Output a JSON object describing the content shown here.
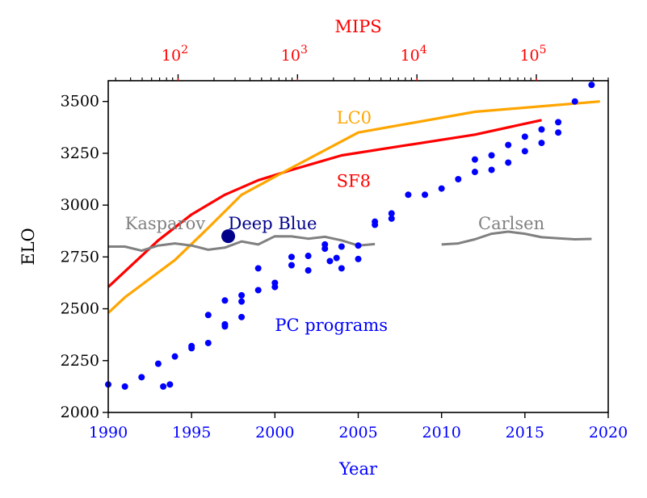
{
  "chart_data": {
    "type": "scatter",
    "xlabel": "Year",
    "ylabel": "ELO",
    "top_xlabel": "MIPS",
    "xlim": [
      1990,
      2020
    ],
    "ylim": [
      2000,
      3600
    ],
    "x_ticks": [
      1990,
      1995,
      2000,
      2005,
      2010,
      2015,
      2020
    ],
    "y_ticks": [
      2000,
      2250,
      2500,
      2750,
      3000,
      3250,
      3500
    ],
    "top_axis": {
      "scale": "log",
      "range_mips": [
        26,
        400000
      ],
      "major_ticks": [
        {
          "value": 100,
          "base": "10",
          "exp": "2"
        },
        {
          "value": 1000,
          "base": "10",
          "exp": "3"
        },
        {
          "value": 10000,
          "base": "10",
          "exp": "4"
        },
        {
          "value": 100000,
          "base": "10",
          "exp": "5"
        }
      ]
    },
    "colors": {
      "bottom_axis": "#0000ff",
      "top_axis": "#ff0000",
      "lc0": "#ffa500",
      "sf8": "#ff0000",
      "human": "#808080",
      "pc": "#0000ff",
      "deep_blue": "#00008b"
    },
    "series": [
      {
        "name": "PC programs",
        "kind": "scatter",
        "points": [
          [
            1990,
            2135
          ],
          [
            1991,
            2125
          ],
          [
            1992,
            2170
          ],
          [
            1993,
            2235
          ],
          [
            1993.3,
            2125
          ],
          [
            1993.7,
            2135
          ],
          [
            1994,
            2270
          ],
          [
            1995,
            2310
          ],
          [
            1995,
            2320
          ],
          [
            1996,
            2335
          ],
          [
            1996,
            2470
          ],
          [
            1997,
            2415
          ],
          [
            1997,
            2425
          ],
          [
            1997,
            2540
          ],
          [
            1998,
            2460
          ],
          [
            1998,
            2535
          ],
          [
            1998,
            2565
          ],
          [
            1999,
            2590
          ],
          [
            1999,
            2695
          ],
          [
            2000,
            2605
          ],
          [
            2000,
            2625
          ],
          [
            2001,
            2710
          ],
          [
            2001,
            2750
          ],
          [
            2002,
            2685
          ],
          [
            2002,
            2755
          ],
          [
            2003,
            2790
          ],
          [
            2003,
            2810
          ],
          [
            2003.3,
            2730
          ],
          [
            2003.7,
            2745
          ],
          [
            2004,
            2695
          ],
          [
            2004,
            2800
          ],
          [
            2005,
            2740
          ],
          [
            2005,
            2805
          ],
          [
            2006,
            2905
          ],
          [
            2006,
            2920
          ],
          [
            2007,
            2935
          ],
          [
            2007,
            2960
          ],
          [
            2008,
            3050
          ],
          [
            2009,
            3050
          ],
          [
            2010,
            3080
          ],
          [
            2011,
            3125
          ],
          [
            2012,
            3160
          ],
          [
            2012,
            3220
          ],
          [
            2013,
            3170
          ],
          [
            2013,
            3240
          ],
          [
            2014,
            3205
          ],
          [
            2014,
            3290
          ],
          [
            2015,
            3260
          ],
          [
            2015,
            3330
          ],
          [
            2016,
            3300
          ],
          [
            2016,
            3365
          ],
          [
            2017,
            3350
          ],
          [
            2017,
            3400
          ],
          [
            2018,
            3500
          ],
          [
            2019,
            3580
          ]
        ]
      },
      {
        "name": "SF8",
        "kind": "line",
        "points": [
          [
            1990,
            2605
          ],
          [
            1991,
            2680
          ],
          [
            1993,
            2830
          ],
          [
            1995,
            2955
          ],
          [
            1997,
            3050
          ],
          [
            1999,
            3120
          ],
          [
            2001,
            3170
          ],
          [
            2004,
            3240
          ],
          [
            2008,
            3290
          ],
          [
            2012,
            3340
          ],
          [
            2016,
            3410
          ]
        ]
      },
      {
        "name": "LC0",
        "kind": "line",
        "points": [
          [
            1990,
            2480
          ],
          [
            1991,
            2555
          ],
          [
            1994,
            2735
          ],
          [
            1996,
            2890
          ],
          [
            1998,
            3050
          ],
          [
            2001,
            3180
          ],
          [
            2005,
            3350
          ],
          [
            2012,
            3450
          ],
          [
            2019.5,
            3500
          ]
        ]
      },
      {
        "name": "Kasparov",
        "kind": "line",
        "points": [
          [
            1990,
            2800
          ],
          [
            1991,
            2800
          ],
          [
            1992,
            2780
          ],
          [
            1993,
            2805
          ],
          [
            1994,
            2815
          ],
          [
            1995,
            2805
          ],
          [
            1996,
            2785
          ],
          [
            1997,
            2795
          ],
          [
            1998,
            2825
          ],
          [
            1999,
            2810
          ],
          [
            2000,
            2850
          ],
          [
            2001,
            2849
          ],
          [
            2002,
            2838
          ],
          [
            2003,
            2847
          ],
          [
            2004,
            2830
          ],
          [
            2005,
            2805
          ],
          [
            2006,
            2812
          ]
        ]
      },
      {
        "name": "Carlsen",
        "kind": "line",
        "points": [
          [
            2010,
            2810
          ],
          [
            2011,
            2815
          ],
          [
            2012,
            2835
          ],
          [
            2013,
            2862
          ],
          [
            2014,
            2872
          ],
          [
            2015,
            2862
          ],
          [
            2016,
            2845
          ],
          [
            2017,
            2840
          ],
          [
            2018,
            2835
          ],
          [
            2019,
            2837
          ]
        ]
      },
      {
        "name": "Deep Blue",
        "kind": "point",
        "points": [
          [
            1997.2,
            2850
          ]
        ]
      }
    ]
  }
}
